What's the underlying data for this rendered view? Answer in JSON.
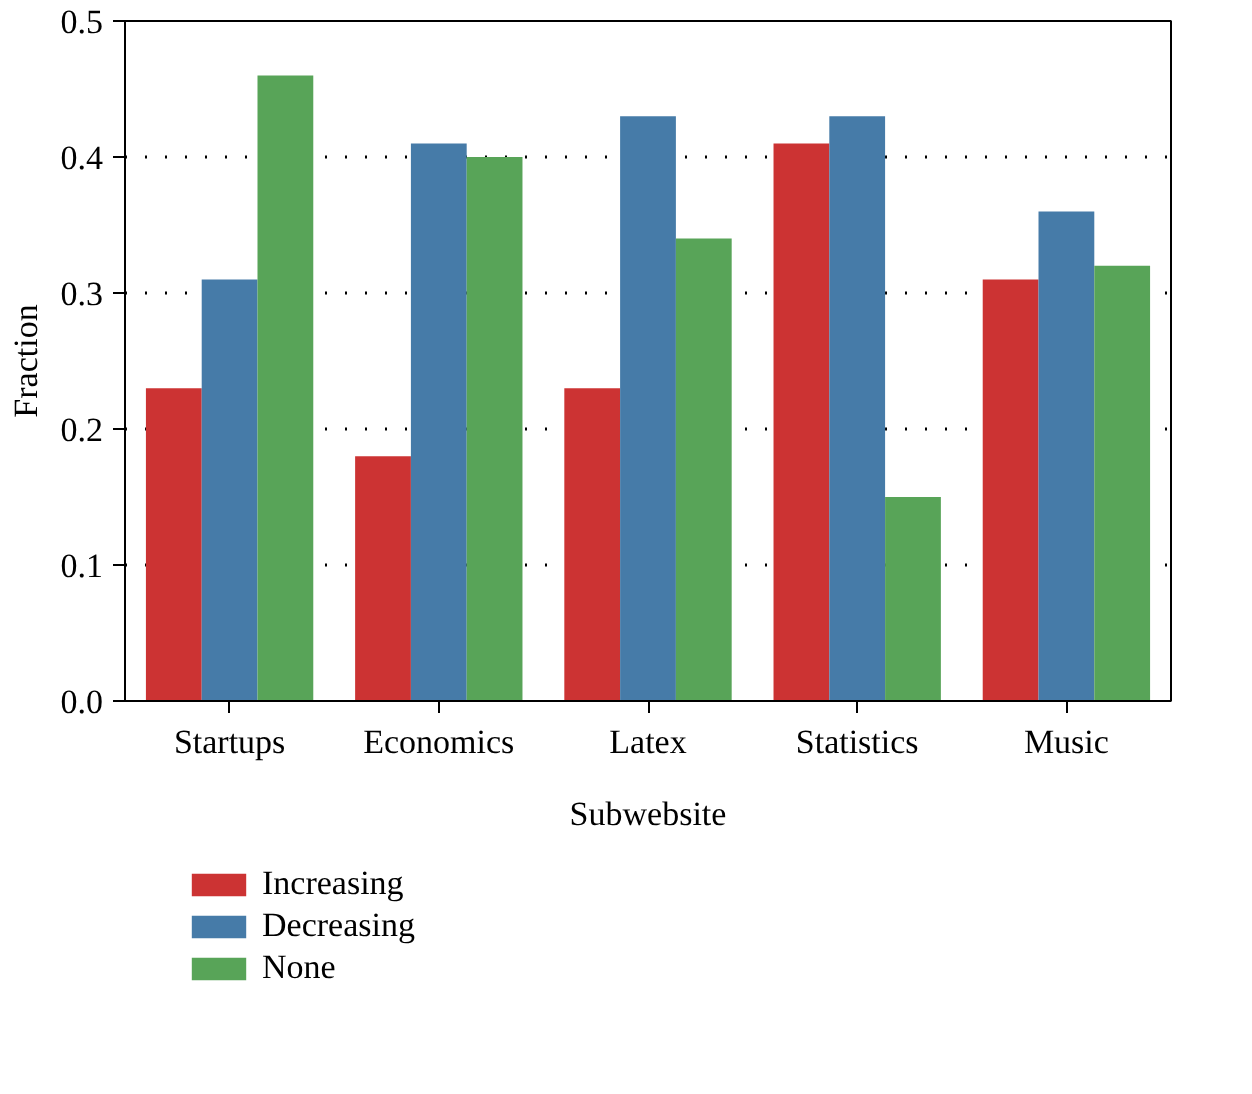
{
  "chart_data": {
    "type": "bar",
    "xlabel": "Subwebsite",
    "ylabel": "Fraction",
    "categories": [
      "Startups",
      "Economics",
      "Latex",
      "Statistics",
      "Music"
    ],
    "series": [
      {
        "name": "Increasing",
        "color": "#cc3333",
        "values": [
          0.23,
          0.18,
          0.23,
          0.41,
          0.31
        ]
      },
      {
        "name": "Decreasing",
        "color": "#467ba8",
        "values": [
          0.31,
          0.41,
          0.43,
          0.43,
          0.36
        ]
      },
      {
        "name": "None",
        "color": "#58a458",
        "values": [
          0.46,
          0.4,
          0.34,
          0.15,
          0.32
        ]
      }
    ],
    "ylim": [
      0,
      0.5
    ],
    "yticks": [
      {
        "value": 0,
        "label": "0.0"
      },
      {
        "value": 0.1,
        "label": "0.1"
      },
      {
        "value": 0.2,
        "label": "0.2"
      },
      {
        "value": 0.3,
        "label": "0.3"
      },
      {
        "value": 0.4,
        "label": "0.4"
      },
      {
        "value": 0.5,
        "label": "0.5"
      }
    ],
    "grid": "y",
    "legend": "bottom left"
  }
}
